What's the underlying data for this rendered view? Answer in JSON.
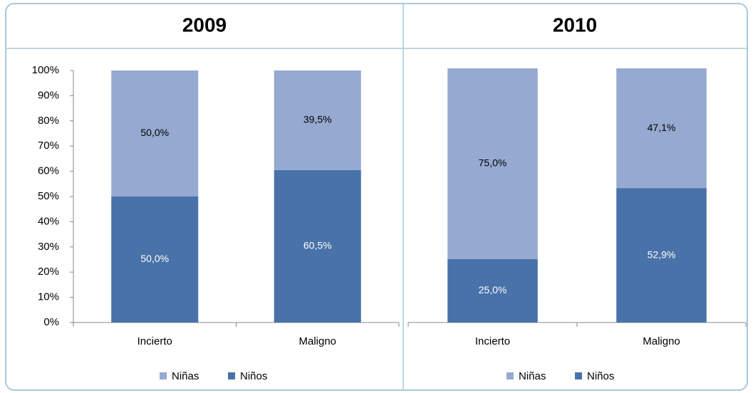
{
  "chart_data": [
    {
      "type": "stacked_bar",
      "title": "2009",
      "categories": [
        "Incierto",
        "Maligno"
      ],
      "series": [
        {
          "name": "Niñas",
          "color": "#95a9d1",
          "values": [
            50.0,
            39.5
          ],
          "value_labels": [
            "50,0%",
            "39,5%"
          ]
        },
        {
          "name": "Niños",
          "color": "#4872a8",
          "values": [
            50.0,
            60.5
          ],
          "value_labels": [
            "50,0%",
            "60,5%"
          ]
        }
      ],
      "ylim": [
        0,
        100
      ],
      "yticks": [
        {
          "value": 0,
          "label": "0%"
        },
        {
          "value": 10,
          "label": "10%"
        },
        {
          "value": 20,
          "label": "20%"
        },
        {
          "value": 30,
          "label": "30%"
        },
        {
          "value": 40,
          "label": "40%"
        },
        {
          "value": 50,
          "label": "50%"
        },
        {
          "value": 60,
          "label": "60%"
        },
        {
          "value": 70,
          "label": "70%"
        },
        {
          "value": 80,
          "label": "80%"
        },
        {
          "value": 90,
          "label": "90%"
        },
        {
          "value": 100,
          "label": "100%"
        }
      ],
      "legend": "bottom"
    },
    {
      "type": "stacked_bar",
      "title": "2010",
      "categories": [
        "Incierto",
        "Maligno"
      ],
      "series": [
        {
          "name": "Niñas",
          "color": "#95a9d1",
          "values": [
            75.0,
            47.1
          ],
          "value_labels": [
            "75,0%",
            "47,1%"
          ]
        },
        {
          "name": "Niños",
          "color": "#4872a8",
          "values": [
            25.0,
            52.9
          ],
          "value_labels": [
            "25,0%",
            "52,9%"
          ]
        }
      ],
      "ylim": [
        0,
        100
      ],
      "legend": "bottom"
    }
  ]
}
